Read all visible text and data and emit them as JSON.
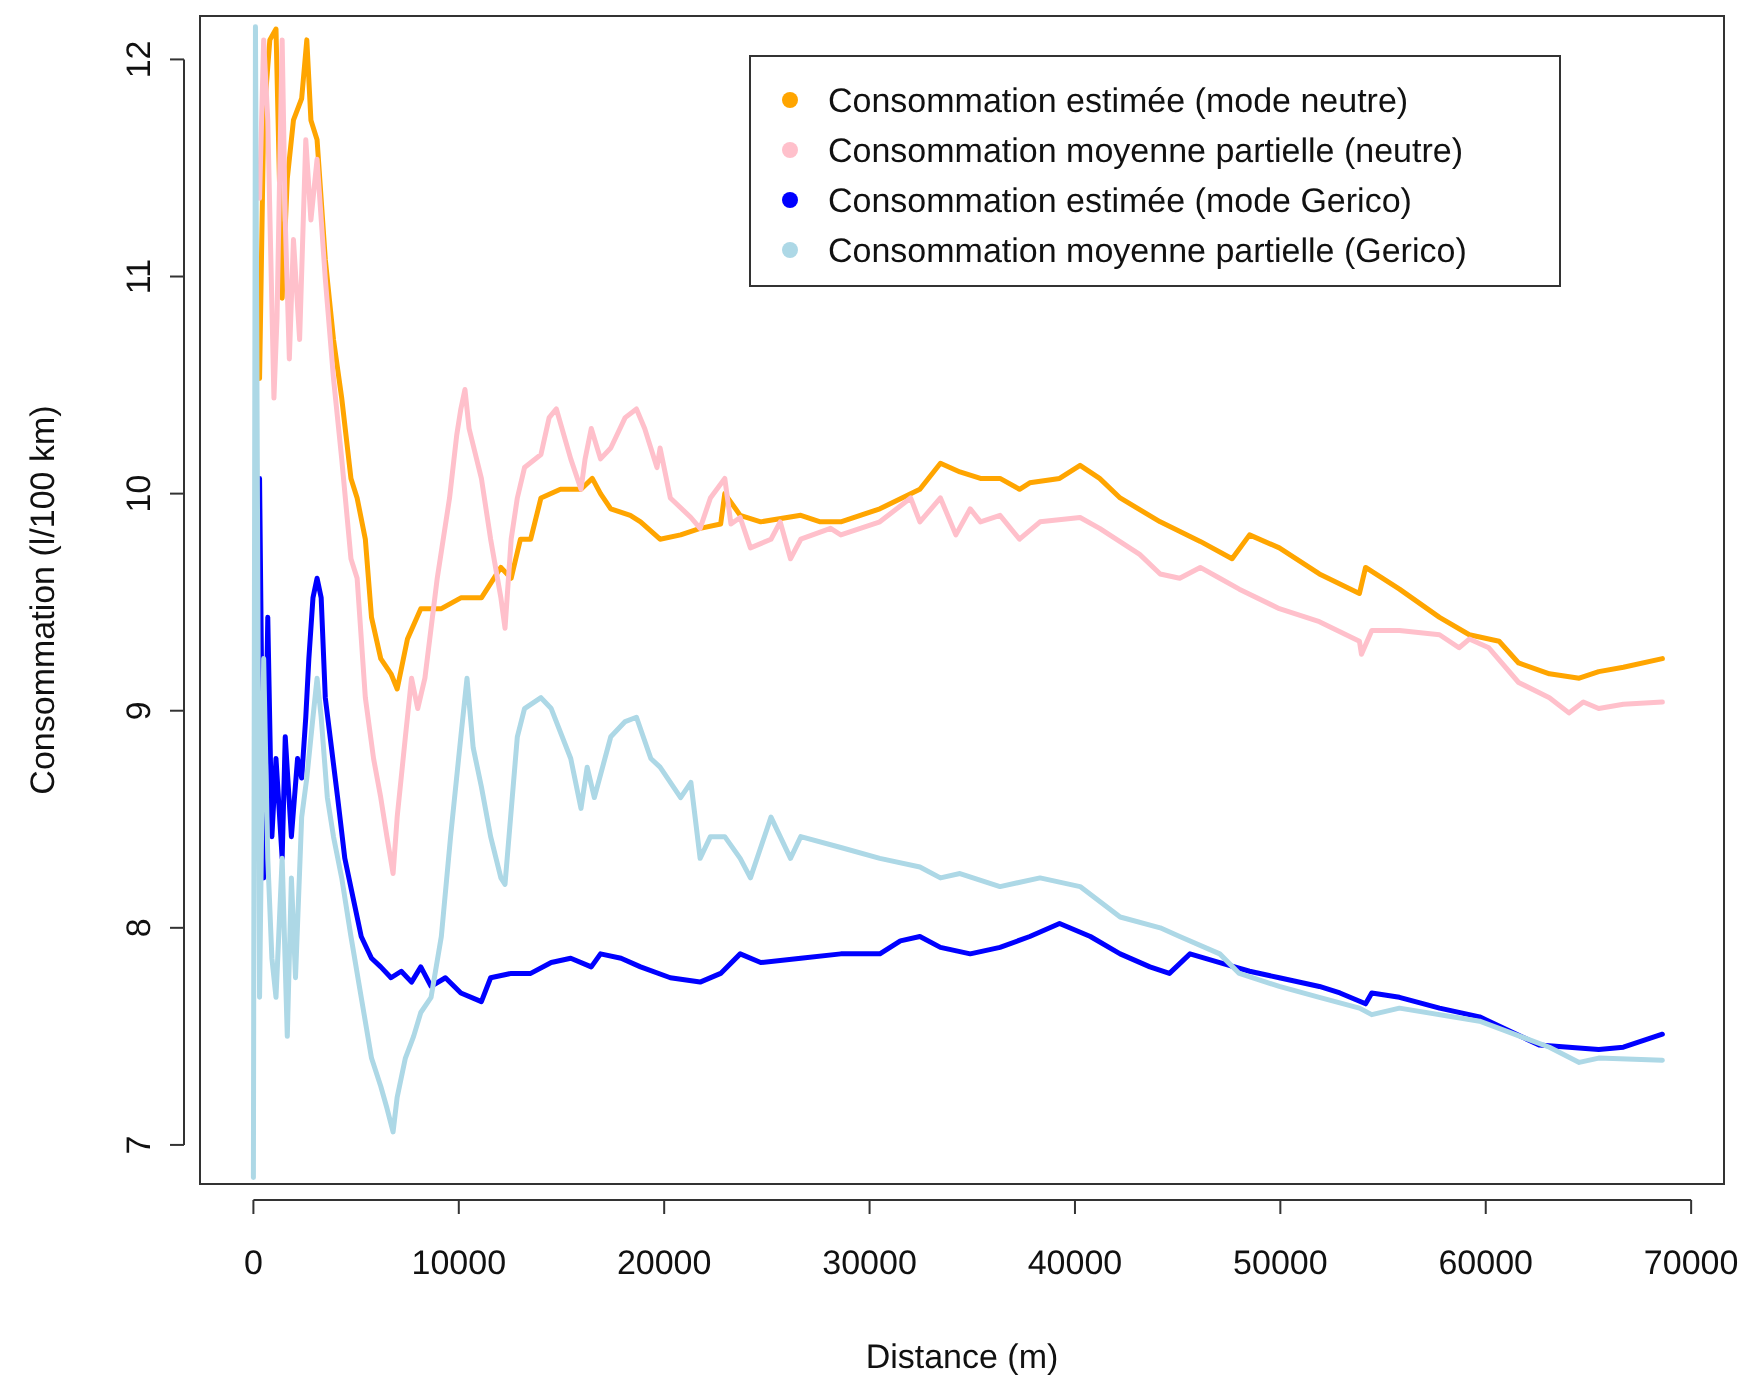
{
  "chart_data": {
    "type": "line",
    "xlabel": "Distance (m)",
    "ylabel": "Consommation (l/100 km)",
    "xlim": [
      -2600,
      71600
    ],
    "ylim": [
      6.82,
      12.2
    ],
    "xticks": [
      0,
      10000,
      20000,
      30000,
      40000,
      50000,
      60000,
      70000
    ],
    "yticks": [
      7,
      8,
      9,
      10,
      11,
      12
    ],
    "grid": false,
    "legend": "top right",
    "marker": "none",
    "line_style": "solid",
    "series": [
      {
        "name": "Consommation estimée (mode neutre)",
        "color": "#ffa500",
        "x": [
          300,
          500,
          800,
          1100,
          1400,
          1650,
          1950,
          2350,
          2600,
          2800,
          3100,
          3500,
          3900,
          4300,
          4750,
          5050,
          5450,
          5750,
          6200,
          6700,
          7000,
          7500,
          8150,
          9150,
          10100,
          11100,
          12050,
          12550,
          13000,
          13500,
          14000,
          14950,
          15950,
          16500,
          16900,
          17400,
          18350,
          18850,
          19800,
          20800,
          21750,
          22750,
          22950,
          23700,
          24700,
          26650,
          27600,
          28600,
          30500,
          32450,
          33450,
          34400,
          35400,
          36350,
          37300,
          37800,
          39250,
          40250,
          41200,
          42200,
          44150,
          46100,
          47650,
          48500,
          49950,
          51900,
          53850,
          54150,
          55800,
          57750,
          59200,
          60650,
          61600,
          63100,
          64550,
          65500,
          66700,
          68600
        ],
        "values": [
          10.53,
          11.72,
          12.09,
          12.14,
          10.9,
          11.45,
          11.72,
          11.82,
          12.09,
          11.72,
          11.63,
          11.08,
          10.71,
          10.44,
          10.07,
          9.98,
          9.79,
          9.43,
          9.24,
          9.17,
          9.1,
          9.33,
          9.47,
          9.47,
          9.52,
          9.52,
          9.66,
          9.61,
          9.79,
          9.79,
          9.98,
          10.02,
          10.02,
          10.07,
          10.0,
          9.93,
          9.9,
          9.87,
          9.79,
          9.81,
          9.84,
          9.86,
          10.0,
          9.9,
          9.87,
          9.9,
          9.87,
          9.87,
          9.93,
          10.02,
          10.14,
          10.1,
          10.07,
          10.07,
          10.02,
          10.05,
          10.07,
          10.13,
          10.07,
          9.98,
          9.87,
          9.78,
          9.7,
          9.81,
          9.75,
          9.63,
          9.54,
          9.66,
          9.56,
          9.43,
          9.35,
          9.32,
          9.22,
          9.17,
          9.15,
          9.18,
          9.2,
          9.24
        ]
      },
      {
        "name": "Consommation moyenne partielle (neutre)",
        "color": "#ffc0cb",
        "x": [
          300,
          500,
          700,
          1000,
          1150,
          1400,
          1550,
          1750,
          1950,
          2250,
          2550,
          2800,
          3100,
          3500,
          3900,
          4300,
          4750,
          5050,
          5450,
          5850,
          6200,
          6500,
          6800,
          7000,
          7400,
          7700,
          8000,
          8350,
          8950,
          9550,
          9900,
          10100,
          10300,
          10500,
          11100,
          11550,
          12050,
          12250,
          12550,
          12850,
          13200,
          14000,
          14400,
          14750,
          15450,
          15950,
          16150,
          16450,
          16900,
          17400,
          18100,
          18650,
          19050,
          19650,
          19800,
          20300,
          21300,
          21750,
          22250,
          22950,
          23250,
          23700,
          24200,
          25200,
          25650,
          26150,
          26650,
          28100,
          28600,
          30500,
          32000,
          32450,
          33450,
          34200,
          34900,
          35400,
          36350,
          37300,
          38300,
          40250,
          41200,
          43150,
          44150,
          45100,
          46100,
          47050,
          48000,
          49950,
          51900,
          53850,
          53950,
          54450,
          55800,
          57750,
          58700,
          59200,
          60150,
          61600,
          63100,
          64050,
          64750,
          65500,
          66700,
          68600
        ],
        "values": [
          11.36,
          12.09,
          11.72,
          10.44,
          10.81,
          12.09,
          11.26,
          10.62,
          11.17,
          10.71,
          11.63,
          11.26,
          11.54,
          10.99,
          10.53,
          10.16,
          9.7,
          9.61,
          9.06,
          8.78,
          8.6,
          8.42,
          8.25,
          8.51,
          8.88,
          9.15,
          9.01,
          9.15,
          9.61,
          9.98,
          10.27,
          10.39,
          10.48,
          10.3,
          10.07,
          9.79,
          9.52,
          9.38,
          9.79,
          9.98,
          10.12,
          10.18,
          10.35,
          10.39,
          10.16,
          10.02,
          10.16,
          10.3,
          10.16,
          10.21,
          10.35,
          10.39,
          10.3,
          10.12,
          10.21,
          9.98,
          9.89,
          9.84,
          9.98,
          10.07,
          9.86,
          9.89,
          9.75,
          9.79,
          9.87,
          9.7,
          9.79,
          9.84,
          9.81,
          9.87,
          9.98,
          9.87,
          9.98,
          9.81,
          9.93,
          9.87,
          9.9,
          9.79,
          9.87,
          9.89,
          9.84,
          9.72,
          9.63,
          9.61,
          9.66,
          9.61,
          9.56,
          9.47,
          9.41,
          9.32,
          9.26,
          9.37,
          9.37,
          9.35,
          9.29,
          9.33,
          9.29,
          9.13,
          9.06,
          8.99,
          9.04,
          9.01,
          9.03,
          9.04
        ]
      },
      {
        "name": "Consommation estimée (mode Gerico)",
        "color": "#0000ff",
        "x": [
          300,
          500,
          700,
          900,
          1100,
          1400,
          1550,
          1850,
          2150,
          2350,
          2550,
          2700,
          2900,
          3100,
          3300,
          3500,
          3800,
          4100,
          4450,
          4850,
          5250,
          5750,
          6200,
          6700,
          7200,
          7700,
          8150,
          8650,
          9350,
          10100,
          11100,
          11550,
          12550,
          13500,
          14500,
          15450,
          16450,
          16900,
          17900,
          18850,
          20300,
          21750,
          22750,
          23700,
          24700,
          26650,
          28600,
          30500,
          31500,
          32450,
          33450,
          34900,
          36350,
          37800,
          39250,
          40750,
          42200,
          43650,
          44600,
          45600,
          47050,
          48500,
          49950,
          51900,
          52900,
          54150,
          54450,
          55800,
          57750,
          59700,
          62600,
          65500,
          66700,
          68600
        ],
        "values": [
          10.07,
          8.23,
          9.43,
          8.42,
          8.78,
          8.32,
          8.88,
          8.42,
          8.78,
          8.69,
          8.97,
          9.24,
          9.52,
          9.61,
          9.52,
          9.06,
          8.83,
          8.6,
          8.32,
          8.14,
          7.96,
          7.86,
          7.82,
          7.77,
          7.8,
          7.75,
          7.82,
          7.73,
          7.77,
          7.7,
          7.66,
          7.77,
          7.79,
          7.79,
          7.84,
          7.86,
          7.82,
          7.88,
          7.86,
          7.82,
          7.77,
          7.75,
          7.79,
          7.88,
          7.84,
          7.86,
          7.88,
          7.88,
          7.94,
          7.96,
          7.91,
          7.88,
          7.91,
          7.96,
          8.02,
          7.96,
          7.88,
          7.82,
          7.79,
          7.88,
          7.84,
          7.8,
          7.77,
          7.73,
          7.7,
          7.65,
          7.7,
          7.68,
          7.63,
          7.59,
          7.46,
          7.44,
          7.45,
          7.51
        ]
      },
      {
        "name": "Consommation moyenne partielle (Gerico)",
        "color": "#add8e6",
        "x": [
          0,
          100,
          300,
          500,
          700,
          900,
          1100,
          1400,
          1650,
          1850,
          2050,
          2350,
          2600,
          2900,
          3100,
          3300,
          3600,
          3900,
          4300,
          4750,
          5250,
          5750,
          6200,
          6500,
          6800,
          7000,
          7400,
          7800,
          8150,
          8650,
          9150,
          9600,
          10100,
          10400,
          10700,
          11100,
          11550,
          12050,
          12250,
          12850,
          13200,
          14000,
          14500,
          15450,
          15950,
          16250,
          16600,
          17400,
          18100,
          18650,
          19350,
          19800,
          20800,
          21300,
          21750,
          22250,
          22950,
          23700,
          24200,
          25200,
          26150,
          26650,
          28600,
          30500,
          32450,
          33450,
          34400,
          36350,
          38300,
          40250,
          42200,
          44150,
          45100,
          47050,
          48000,
          49950,
          51900,
          53850,
          54450,
          55800,
          59700,
          63100,
          64550,
          65500,
          68600
        ],
        "values": [
          6.85,
          12.15,
          7.68,
          9.24,
          8.32,
          7.86,
          7.68,
          8.32,
          7.5,
          8.23,
          7.77,
          8.51,
          8.69,
          8.97,
          9.15,
          8.97,
          8.6,
          8.42,
          8.23,
          7.96,
          7.68,
          7.4,
          7.27,
          7.17,
          7.06,
          7.22,
          7.4,
          7.5,
          7.61,
          7.68,
          7.96,
          8.42,
          8.88,
          9.15,
          8.83,
          8.65,
          8.42,
          8.23,
          8.2,
          8.88,
          9.01,
          9.06,
          9.01,
          8.78,
          8.55,
          8.74,
          8.6,
          8.88,
          8.95,
          8.97,
          8.78,
          8.74,
          8.6,
          8.67,
          8.32,
          8.42,
          8.42,
          8.32,
          8.23,
          8.51,
          8.32,
          8.42,
          8.37,
          8.32,
          8.28,
          8.23,
          8.25,
          8.19,
          8.23,
          8.19,
          8.05,
          8.0,
          7.96,
          7.88,
          7.79,
          7.73,
          7.68,
          7.63,
          7.6,
          7.63,
          7.57,
          7.45,
          7.38,
          7.4,
          7.39
        ]
      }
    ]
  }
}
